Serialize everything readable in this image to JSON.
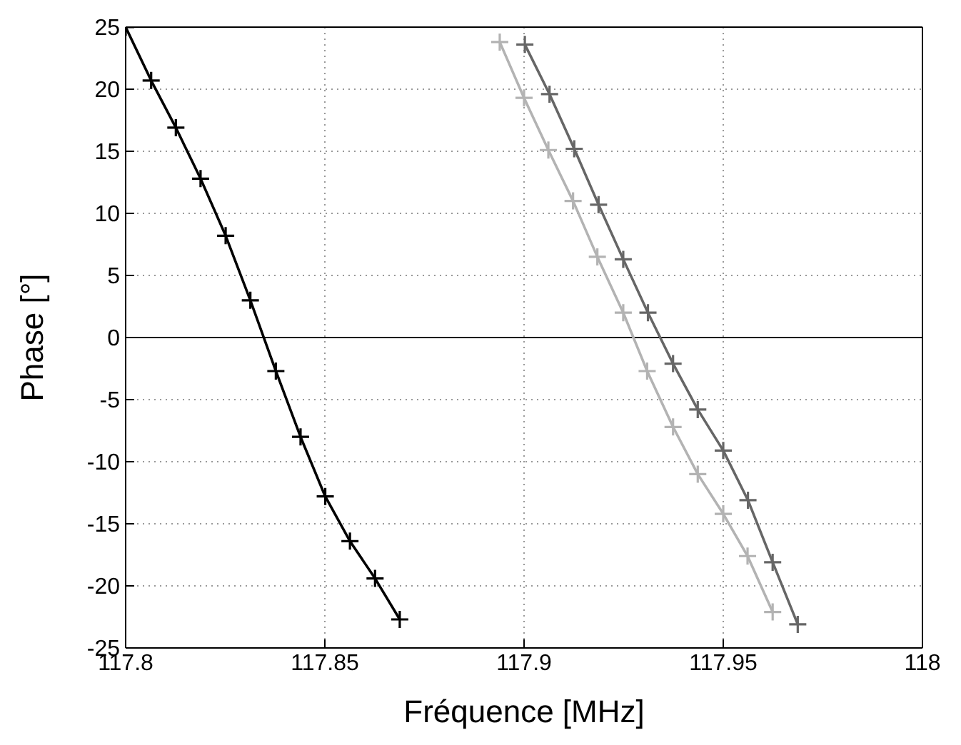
{
  "chart_data": {
    "type": "line",
    "xlabel": "Fréquence [MHz]",
    "ylabel": "Phase [°]",
    "xlim": [
      117.8,
      118
    ],
    "xticks": [
      117.8,
      117.85,
      117.9,
      117.95,
      118
    ],
    "ylim": [
      -25,
      25
    ],
    "yticks": [
      -25,
      -20,
      -15,
      -10,
      -5,
      0,
      5,
      10,
      15,
      20,
      25
    ],
    "grid": true,
    "marker": "cross",
    "line_style": "solid",
    "ref_lines": [
      {
        "axis": "y",
        "value": 0,
        "color": "#000000"
      }
    ],
    "series": [
      {
        "color": "#000000",
        "x": [
          117.8,
          117.8064,
          117.8126,
          117.8188,
          117.8251,
          117.8313,
          117.8377,
          117.8439,
          117.8501,
          117.8563,
          117.8626,
          117.8688
        ],
        "values": [
          25,
          20.7,
          16.9,
          12.8,
          8.2,
          3.0,
          -2.7,
          -8.0,
          -12.8,
          -16.4,
          -19.4,
          -22.7
        ]
      },
      {
        "color": "#666666",
        "x": [
          117.9002,
          117.9064,
          117.9126,
          117.9187,
          117.9249,
          117.9311,
          117.9374,
          117.9436,
          117.95,
          117.9562,
          117.9624,
          117.9687
        ],
        "values": [
          23.6,
          19.6,
          15.2,
          10.7,
          6.3,
          2.0,
          -2.1,
          -5.8,
          -9.1,
          -13.1,
          -18.1,
          -23.1
        ]
      },
      {
        "color": "#b3b3b3",
        "x": [
          117.8939,
          117.9,
          117.9061,
          117.9123,
          117.9184,
          117.9249,
          117.9309,
          117.9374,
          117.9436,
          117.95,
          117.9561,
          117.9624
        ],
        "values": [
          23.8,
          19.3,
          15.1,
          11.0,
          6.5,
          2.0,
          -2.7,
          -7.2,
          -11.0,
          -14.2,
          -17.6,
          -22.1
        ]
      }
    ]
  }
}
